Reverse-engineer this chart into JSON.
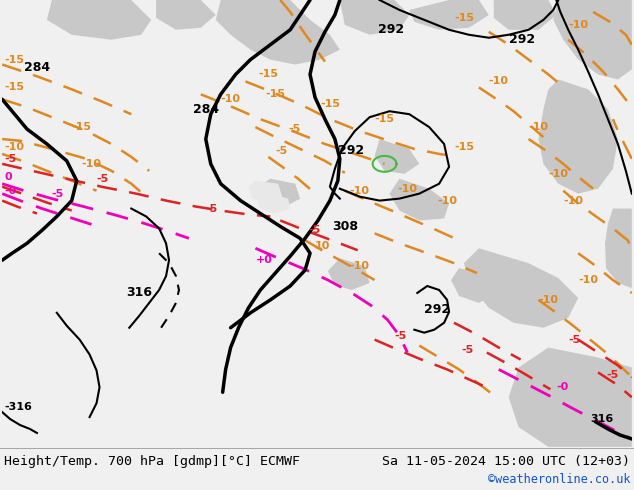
{
  "title_left": "Height/Temp. 700 hPa [gdmp][°C] ECMWF",
  "title_right": "Sa 11-05-2024 15:00 UTC (12+03)",
  "copyright": "©weatheronline.co.uk",
  "green": "#b5e878",
  "gray": "#c8c8c8",
  "light_gray": "#d8d8d8",
  "white": "#ffffff",
  "orange": "#e08820",
  "red": "#dd2222",
  "pink": "#ee00bb",
  "green_contour": "#44bb44",
  "black": "#000000",
  "bottom_bg": "#f0f0f0",
  "copyright_color": "#1155cc",
  "figsize": [
    6.34,
    4.9
  ],
  "dpi": 100,
  "title_fontsize": 9.5,
  "copyright_fontsize": 8.5
}
